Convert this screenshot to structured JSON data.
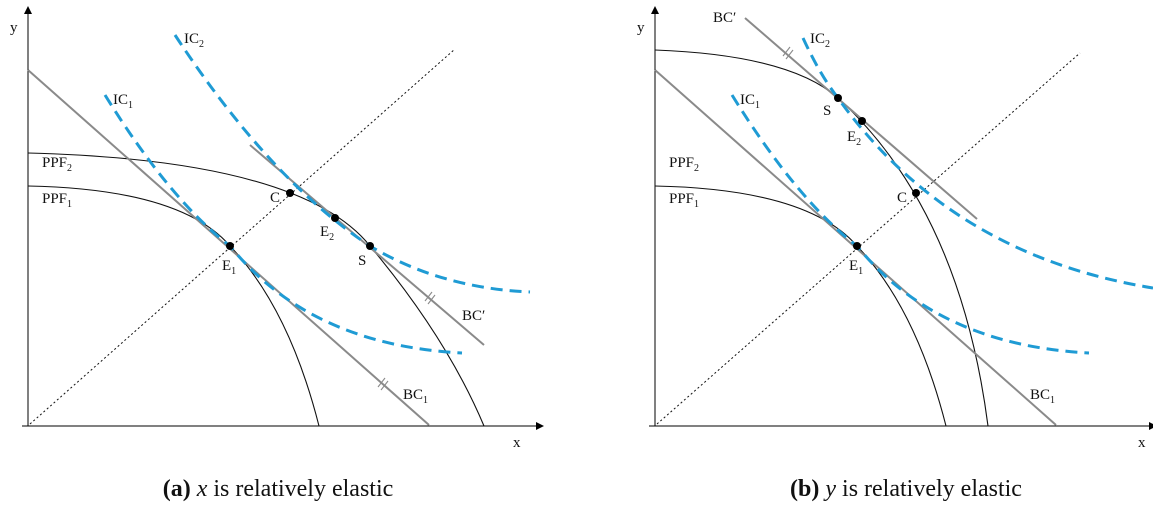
{
  "panels": [
    {
      "axes": {
        "x": "x",
        "y": "y"
      },
      "curves": {
        "ppf1": "PPF",
        "ppf1_sub": "1",
        "ppf2": "PPF",
        "ppf2_sub": "2",
        "ic1": "IC",
        "ic1_sub": "1",
        "ic2": "IC",
        "ic2_sub": "2",
        "bc1": "BC",
        "bc1_sub": "1",
        "bc_prime": "BC′"
      },
      "points": {
        "e1": "E",
        "e1_sub": "1",
        "e2": "E",
        "e2_sub": "2",
        "c": "C",
        "s": "S"
      },
      "caption": {
        "tag": "(a)",
        "var": "x",
        "text": " is relatively elastic"
      }
    },
    {
      "axes": {
        "x": "x",
        "y": "y"
      },
      "curves": {
        "ppf1": "PPF",
        "ppf1_sub": "1",
        "ppf2": "PPF",
        "ppf2_sub": "2",
        "ic1": "IC",
        "ic1_sub": "1",
        "ic2": "IC",
        "ic2_sub": "2",
        "bc1": "BC",
        "bc1_sub": "1",
        "bc_prime": "BC′"
      },
      "points": {
        "e1": "E",
        "e1_sub": "1",
        "e2": "E",
        "e2_sub": "2",
        "c": "C",
        "s": "S"
      },
      "caption": {
        "tag": "(b)",
        "var": "y",
        "text": " is relatively elastic"
      }
    }
  ]
}
